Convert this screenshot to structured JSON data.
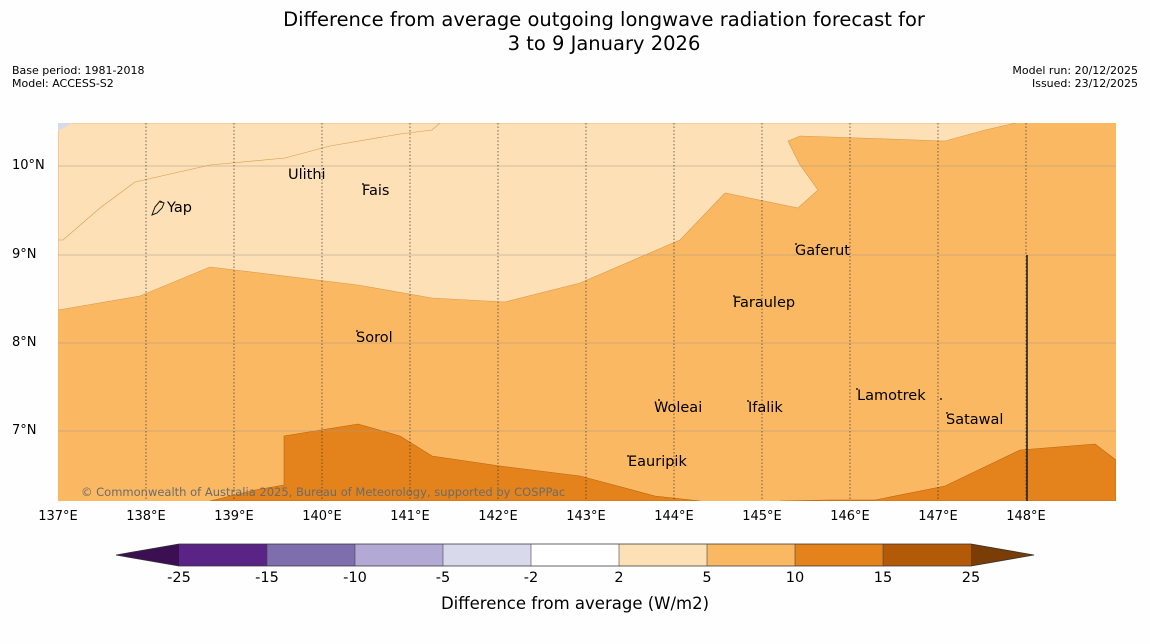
{
  "title": {
    "line1": "Difference from average outgoing longwave radiation forecast for",
    "line2": "3 to 9 January 2026"
  },
  "meta": {
    "base_period": "Base period: 1981-2018",
    "model": "Model: ACCESS-S2",
    "model_run": "Model run: 20/12/2025",
    "issued": "Issued: 23/12/2025"
  },
  "axes": {
    "lat_labels": [
      "10°N",
      "9°N",
      "8°N",
      "7°N"
    ],
    "lon_labels": [
      "137°E",
      "138°E",
      "139°E",
      "140°E",
      "141°E",
      "142°E",
      "143°E",
      "144°E",
      "145°E",
      "146°E",
      "147°E",
      "148°E"
    ]
  },
  "places": [
    {
      "name": "Yap"
    },
    {
      "name": "Ulithi"
    },
    {
      "name": "Fais"
    },
    {
      "name": "Gaferut"
    },
    {
      "name": "Faraulep"
    },
    {
      "name": "Sorol"
    },
    {
      "name": "Lamotrek"
    },
    {
      "name": "Woleai"
    },
    {
      "name": "Ifalik"
    },
    {
      "name": "Satawal"
    },
    {
      "name": "Eauripik"
    }
  ],
  "copyright": "© Commonwealth of Australia 2025, Bureau of Meteorology, supported by COSPPac",
  "colorbar": {
    "ticks": [
      "-25",
      "-15",
      "-10",
      "-5",
      "-2",
      "2",
      "5",
      "10",
      "15",
      "25"
    ],
    "label": "Difference from average (W/m2)",
    "colors": {
      "below": "#3b0f52",
      "c1": "#5a2486",
      "c2": "#7e6ead",
      "c3": "#b2aad4",
      "c4": "#d9d9ec",
      "c5": "#ffffff",
      "c6": "#fde0b6",
      "c7": "#fbb862",
      "c8": "#e4831b",
      "c9": "#b35a08",
      "above": "#7a3d05"
    }
  }
}
